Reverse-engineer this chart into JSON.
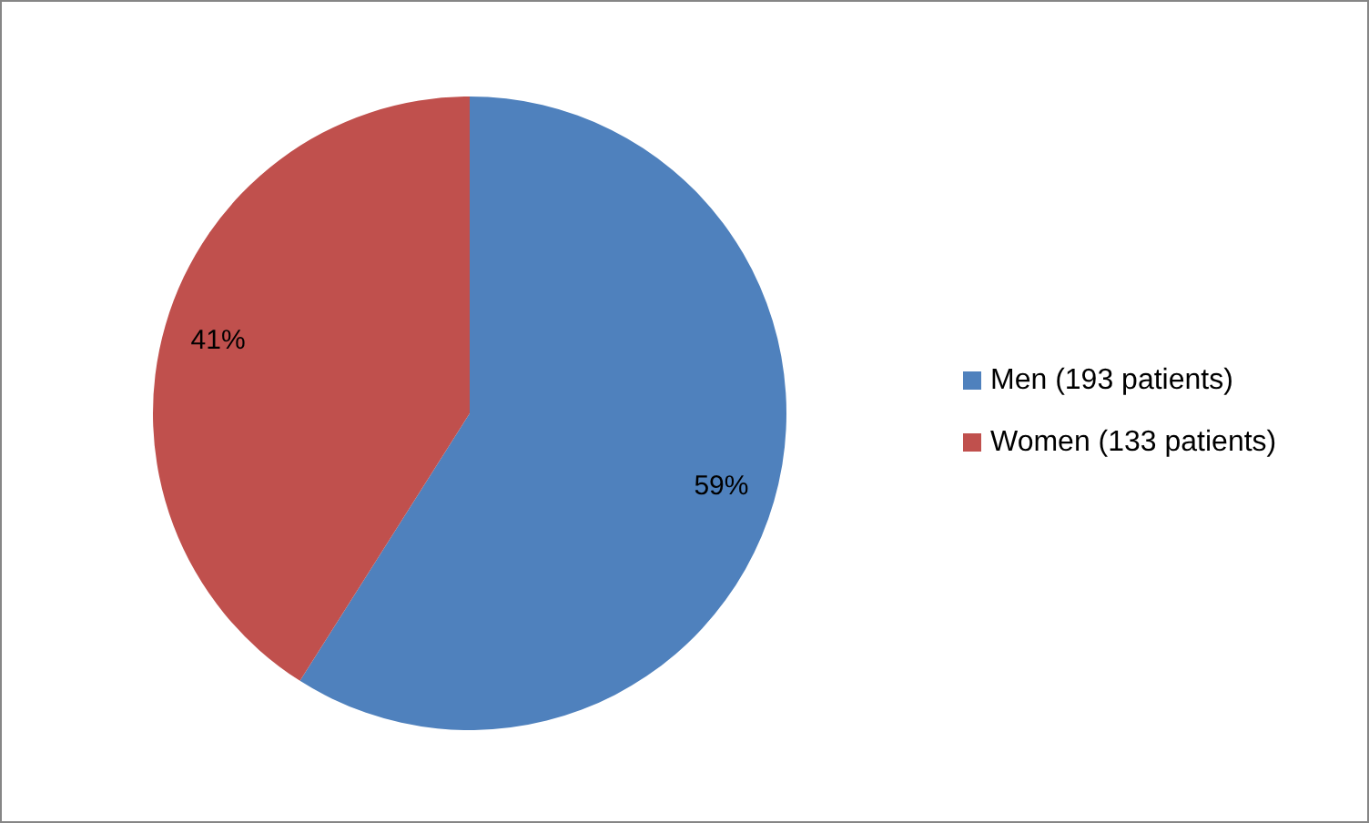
{
  "chart_data": {
    "type": "pie",
    "categories": [
      "Men (193 patients)",
      "Women (133 patients)"
    ],
    "values": [
      59,
      41
    ],
    "colors": [
      "#4f81bd",
      "#c0504d"
    ],
    "value_labels": [
      "59%",
      "41%"
    ],
    "legend": "right"
  }
}
